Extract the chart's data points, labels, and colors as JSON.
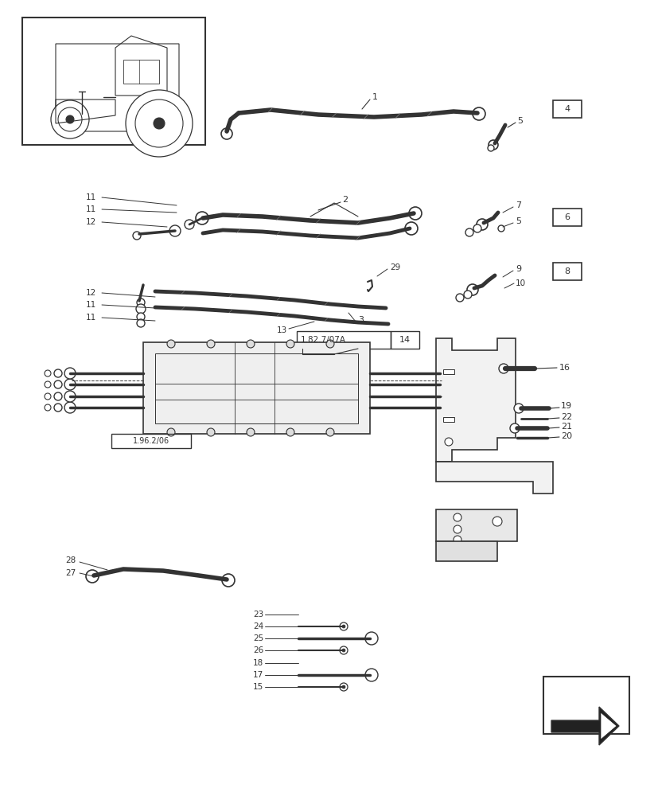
{
  "bg_color": "#ffffff",
  "line_color": "#333333",
  "fig_width": 8.28,
  "fig_height": 10.0,
  "dpi": 100
}
